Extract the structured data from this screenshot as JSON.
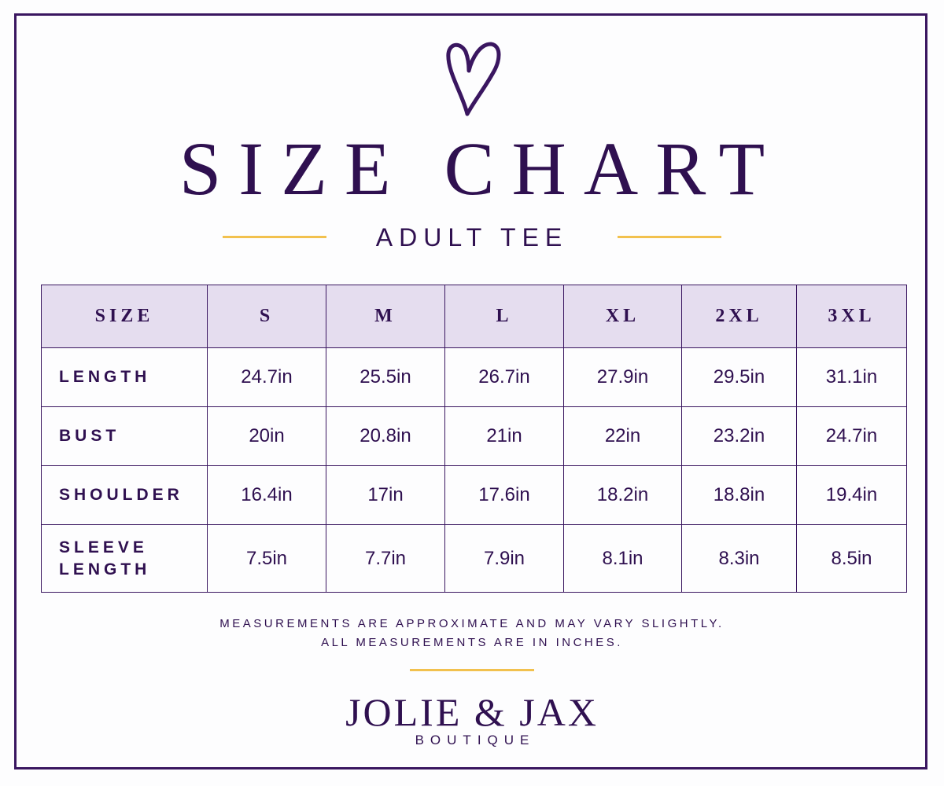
{
  "header": {
    "title": "SIZE CHART",
    "subtitle": "ADULT TEE"
  },
  "table": {
    "columns": [
      "SIZE",
      "S",
      "M",
      "L",
      "XL",
      "2XL",
      "3XL"
    ],
    "rows": [
      [
        "LENGTH",
        "24.7in",
        "25.5in",
        "26.7in",
        "27.9in",
        "29.5in",
        "31.1in"
      ],
      [
        "BUST",
        "20in",
        "20.8in",
        "21in",
        "22in",
        "23.2in",
        "24.7in"
      ],
      [
        "SHOULDER",
        "16.4in",
        "17in",
        "17.6in",
        "18.2in",
        "18.8in",
        "19.4in"
      ],
      [
        "SLEEVE LENGTH",
        "7.5in",
        "7.7in",
        "7.9in",
        "8.1in",
        "8.3in",
        "8.5in"
      ]
    ]
  },
  "notes": [
    "MEASUREMENTS ARE APPROXIMATE AND MAY VARY SLIGHTLY.",
    "ALL MEASUREMENTS ARE IN INCHES."
  ],
  "brand": {
    "name": "JOLIE & JAX",
    "tagline": "BOUTIQUE"
  }
}
